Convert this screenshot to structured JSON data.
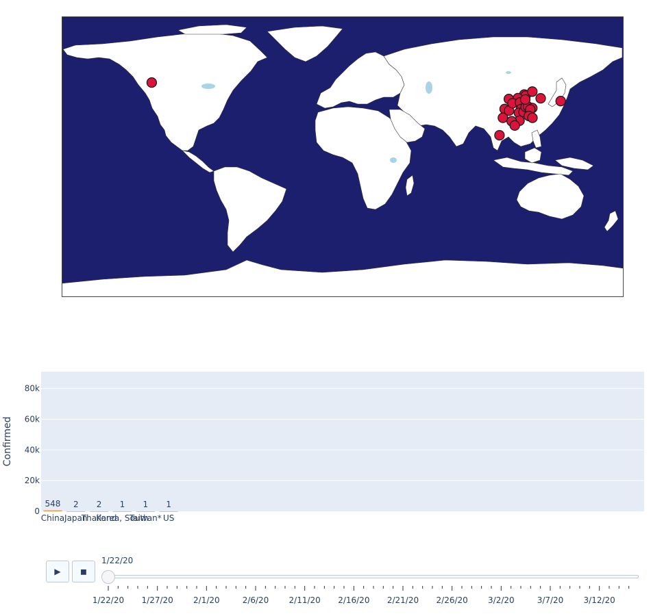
{
  "colors": {
    "ocean": "#1c1f6e",
    "land": "#ffffff",
    "lakes": "#a9d3e6",
    "marker": "#dc143c",
    "marker_outline": "#1a1a1a",
    "plot_bg": "#e5ecf6",
    "bar": "#ef8d3b",
    "text": "#2a3f5f"
  },
  "map": {
    "projection": "equirectangular",
    "markers": [
      {
        "lon": -122.3,
        "lat": 47.6
      },
      {
        "lon": 139.7,
        "lat": 35.7
      },
      {
        "lon": 126.9,
        "lat": 37.5
      },
      {
        "lon": 100.5,
        "lat": 13.8
      },
      {
        "lon": 116.4,
        "lat": 39.9
      },
      {
        "lon": 117.2,
        "lat": 39.1
      },
      {
        "lon": 121.5,
        "lat": 41.8
      },
      {
        "lon": 106.5,
        "lat": 37.0
      },
      {
        "lon": 112.3,
        "lat": 37.6
      },
      {
        "lon": 103.8,
        "lat": 30.6
      },
      {
        "lon": 102.7,
        "lat": 25.0
      },
      {
        "lon": 106.6,
        "lat": 29.6
      },
      {
        "lon": 108.9,
        "lat": 34.3
      },
      {
        "lon": 113.6,
        "lat": 34.8
      },
      {
        "lon": 114.3,
        "lat": 30.6
      },
      {
        "lon": 112.9,
        "lat": 28.2
      },
      {
        "lon": 115.9,
        "lat": 28.7
      },
      {
        "lon": 117.3,
        "lat": 31.9
      },
      {
        "lon": 118.8,
        "lat": 32.1
      },
      {
        "lon": 121.5,
        "lat": 31.2
      },
      {
        "lon": 120.2,
        "lat": 30.3
      },
      {
        "lon": 119.3,
        "lat": 26.1
      },
      {
        "lon": 113.3,
        "lat": 23.1
      },
      {
        "lon": 108.3,
        "lat": 22.8
      },
      {
        "lon": 110.3,
        "lat": 20.0
      },
      {
        "lon": 117.0,
        "lat": 36.7
      },
      {
        "lon": 121.6,
        "lat": 25.0
      }
    ]
  },
  "chart_data": {
    "type": "bar",
    "categories": [
      "China",
      "Japan",
      "Thailand",
      "Korea, South",
      "Taiwan*",
      "US"
    ],
    "values": [
      548,
      2,
      2,
      1,
      1,
      1
    ],
    "data_labels": [
      "548",
      "2",
      "2",
      "1",
      "1",
      "1"
    ],
    "ylabel": "Confirmed",
    "ylim": [
      0,
      91000
    ],
    "yticks": [
      0,
      20000,
      40000,
      60000,
      80000
    ],
    "ytick_labels": [
      "0",
      "20k",
      "40k",
      "60k",
      "80k"
    ],
    "n_category_slots": 26,
    "grid": true
  },
  "animation": {
    "play_label": "▶",
    "pause_label": "◼",
    "current_frame": "1/22/20",
    "slider_position_fraction": 0,
    "tick_labels": [
      "1/22/20",
      "1/27/20",
      "2/1/20",
      "2/6/20",
      "2/11/20",
      "2/16/20",
      "2/21/20",
      "2/26/20",
      "3/2/20",
      "3/7/20",
      "3/12/20"
    ],
    "minor_ticks_per_label": 5,
    "total_ticks": 55
  }
}
